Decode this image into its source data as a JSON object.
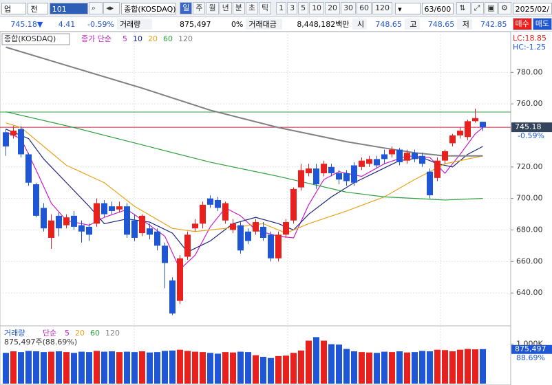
{
  "toolbar": {
    "market": "업",
    "prev": "전",
    "code": "101",
    "name": "종합(KOSDAQ)",
    "periods": [
      "일",
      "주",
      "월",
      "년",
      "분",
      "초",
      "틱"
    ],
    "intervals": [
      "1",
      "3",
      "5",
      "10",
      "20",
      "30",
      "60",
      "120"
    ],
    "count": "63/600",
    "date": "2025/02/"
  },
  "quote": {
    "price": "745.18",
    "arrow": "▼",
    "change": "4.41",
    "change_pct": "-0.59%",
    "volume_label": "거래량",
    "volume": "875,497",
    "volume_pct": "0%",
    "amount_label": "거래대금",
    "amount": "8,448,182백만",
    "open_label": "시",
    "open": "748.65",
    "high_label": "고",
    "high": "748.65",
    "low_label": "저",
    "low": "742.85",
    "buy": "매수",
    "sell": "매도"
  },
  "chart_data": [
    {
      "type": "candlestick",
      "title": "종합(KOSDAQ)",
      "legend_label": "종가 단순",
      "open": [
        742,
        740,
        744,
        728,
        709,
        694,
        675,
        689,
        683,
        689,
        683,
        682,
        684,
        697,
        695,
        693,
        695,
        686,
        678,
        681,
        679,
        670,
        648,
        635,
        663,
        681,
        684,
        700,
        699,
        686,
        680,
        683,
        679,
        679,
        682,
        677,
        662,
        677,
        686,
        707,
        716,
        719,
        716,
        720,
        716,
        716,
        721,
        720,
        722,
        725,
        728,
        728,
        731,
        724,
        729,
        727,
        717,
        713,
        724,
        735,
        740,
        739,
        749,
        748.65
      ],
      "high": [
        744,
        746,
        746,
        729,
        710,
        697,
        690,
        691,
        690,
        692,
        686,
        684,
        700,
        699,
        698,
        698,
        697,
        690,
        690,
        684,
        681,
        672,
        650,
        664,
        679,
        687,
        698,
        702,
        701,
        698,
        687,
        685,
        681,
        687,
        685,
        679,
        679,
        687,
        707,
        722,
        722,
        722,
        724,
        722,
        718,
        718,
        723,
        726,
        727,
        727,
        731,
        733,
        732,
        731,
        731,
        729,
        719,
        726,
        731,
        741,
        745,
        750,
        757,
        748.65
      ],
      "low": [
        727,
        738,
        726,
        708,
        688,
        679,
        668,
        676,
        681,
        680,
        672,
        673,
        682,
        688,
        690,
        691,
        675,
        673,
        676,
        674,
        667,
        643,
        626,
        633,
        661,
        679,
        681,
        694,
        692,
        684,
        678,
        665,
        671,
        677,
        673,
        660,
        660,
        675,
        684,
        705,
        714,
        706,
        714,
        714,
        709,
        708,
        708,
        718,
        720,
        719,
        722,
        726,
        721,
        722,
        723,
        720,
        700,
        711,
        722,
        733,
        738,
        737,
        748,
        742.85
      ],
      "close": [
        733,
        743,
        728,
        710,
        689,
        681,
        686,
        681,
        688,
        682,
        679,
        677,
        697,
        690,
        692,
        695,
        677,
        675,
        689,
        677,
        670,
        659,
        627,
        662,
        677,
        684,
        696,
        696,
        694,
        697,
        684,
        667,
        673,
        685,
        675,
        662,
        677,
        685,
        706,
        718,
        719,
        709,
        722,
        716,
        712,
        711,
        710,
        724,
        725,
        721,
        725,
        731,
        723,
        729,
        725,
        722,
        702,
        724,
        730,
        740,
        743,
        749,
        751,
        745.18
      ],
      "up_color": "#e8201e",
      "down_color": "#1f56d6",
      "ylim": [
        620,
        805
      ],
      "yticks": [
        {
          "value": 640,
          "label": "640.00"
        },
        {
          "value": 660,
          "label": "660.00"
        },
        {
          "value": 680,
          "label": "680.00"
        },
        {
          "value": 700,
          "label": "700.00"
        },
        {
          "value": 720,
          "label": "720.00"
        },
        {
          "value": 760,
          "label": "760.00"
        },
        {
          "value": 780,
          "label": "780.00"
        }
      ],
      "grid": true,
      "moving_averages": [
        {
          "name": "5",
          "color": "#c81ec8",
          "x": [
            0,
            2,
            4,
            6,
            8,
            11,
            13,
            16,
            19,
            21,
            23,
            25,
            27,
            29,
            31,
            33,
            36,
            38,
            40,
            42,
            44,
            47,
            50,
            53,
            56,
            58,
            60,
            62,
            63
          ],
          "values": [
            742,
            738,
            718,
            697,
            686,
            683,
            688,
            693,
            683,
            676,
            655,
            664,
            682,
            694,
            689,
            680,
            676,
            675,
            696,
            712,
            717,
            714,
            722,
            727,
            726,
            716,
            728,
            741,
            745
          ]
        },
        {
          "name": "10",
          "color": "#1a237e",
          "x": [
            0,
            3,
            5,
            8,
            11,
            13,
            16,
            19,
            22,
            24,
            27,
            30,
            33,
            36,
            38,
            40,
            43,
            46,
            49,
            52,
            55,
            57,
            59,
            61,
            63
          ],
          "values": [
            744,
            738,
            725,
            710,
            695,
            684,
            687,
            685,
            678,
            666,
            673,
            684,
            688,
            684,
            680,
            690,
            701,
            710,
            717,
            724,
            726,
            722,
            720,
            728,
            733
          ]
        },
        {
          "name": "20",
          "color": "#e8a31a",
          "x": [
            0,
            2,
            5,
            8,
            13,
            17,
            22,
            25,
            29,
            34,
            37,
            40,
            45,
            50,
            54,
            58,
            63
          ],
          "values": [
            748,
            745,
            733,
            721,
            710,
            695,
            681,
            679,
            681,
            684,
            678,
            684,
            692,
            701,
            712,
            722,
            727
          ]
        },
        {
          "name": "60",
          "color": "#2e9e3e",
          "x": [
            0,
            9,
            18,
            27,
            36,
            45,
            50,
            54,
            58,
            63
          ],
          "values": [
            755,
            745,
            734,
            723,
            714,
            704,
            701,
            700,
            699,
            700
          ]
        },
        {
          "name": "120",
          "color": "#808080",
          "x": [
            0,
            9,
            18,
            27,
            36,
            45,
            50,
            54,
            58,
            63
          ],
          "values": [
            796,
            783,
            770,
            756,
            745,
            736,
            732,
            729,
            727,
            727
          ]
        }
      ],
      "reference_lines": [
        {
          "value": 754.8,
          "color": "#2e9e3e"
        },
        {
          "value": 745.18,
          "color": "#d0204a"
        }
      ],
      "last_label": "745.18",
      "last_change": "-0.59%",
      "annotations": [
        "LC:18.85",
        "HC:-1.25"
      ]
    },
    {
      "type": "bar",
      "title": "거래량",
      "legend_label": "단순",
      "ma_names": [
        {
          "name": "5",
          "color": "#c81ec8"
        },
        {
          "name": "20",
          "color": "#e8a31a"
        },
        {
          "name": "60",
          "color": "#2e9e3e"
        },
        {
          "name": "120",
          "color": "#808080"
        }
      ],
      "value_label": "875,497주(88.69%)",
      "values": [
        780000,
        820000,
        800000,
        830000,
        820000,
        800000,
        810000,
        820000,
        800000,
        780000,
        810000,
        800000,
        830000,
        810000,
        820000,
        800000,
        810000,
        800000,
        820000,
        790000,
        800000,
        830000,
        840000,
        860000,
        830000,
        810000,
        800000,
        780000,
        760000,
        800000,
        790000,
        810000,
        800000,
        720000,
        680000,
        650000,
        700000,
        710000,
        780000,
        840000,
        1090000,
        1180000,
        1090000,
        1000000,
        990000,
        880000,
        820000,
        800000,
        790000,
        780000,
        810000,
        800000,
        820000,
        790000,
        800000,
        830000,
        820000,
        860000,
        850000,
        820000,
        860000,
        880000,
        870000,
        875497
      ],
      "ylim": [
        0,
        1430000
      ],
      "yticks": [
        {
          "value": 1000000,
          "label": "1,000K"
        }
      ],
      "last_label": "875,497",
      "last_pct": "88.69%"
    }
  ]
}
